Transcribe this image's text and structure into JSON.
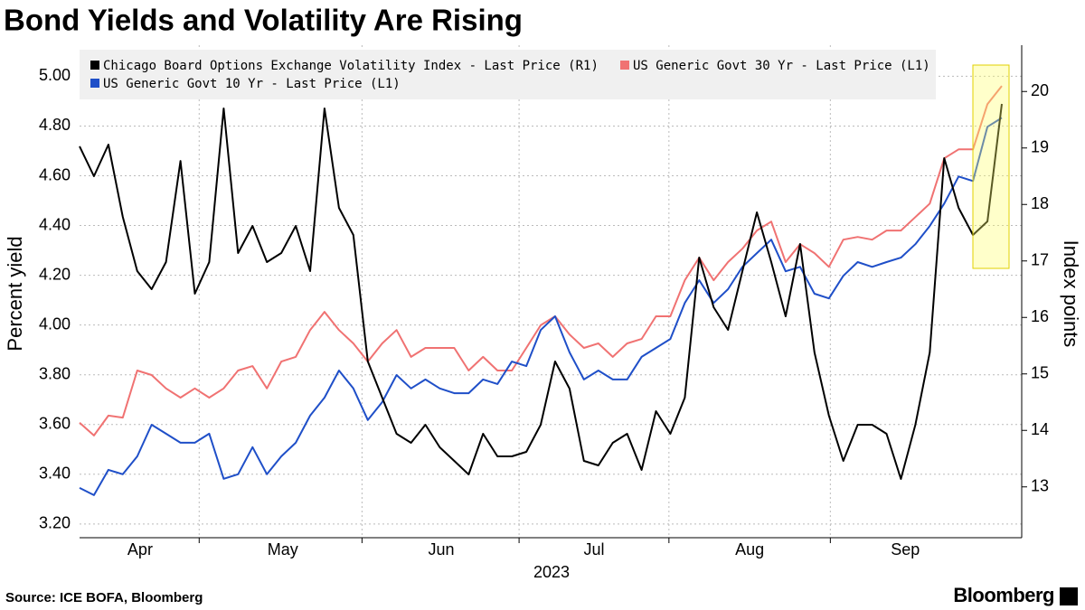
{
  "chart_data": {
    "type": "line",
    "title": "Bond Yields and Volatility Are Rising",
    "ylabel": "Percent yield",
    "y2label": "Index points",
    "xlabel": "2023",
    "source": "Source: ICE BOFA, Bloomberg",
    "brand": "Bloomberg",
    "categories": [
      null,
      null,
      null,
      null,
      null,
      null,
      null,
      null,
      null,
      null,
      null,
      null,
      null,
      null,
      null,
      null,
      null,
      null,
      null,
      null,
      null,
      null,
      null,
      null,
      null,
      null,
      null,
      null,
      null,
      null,
      null,
      null,
      null,
      null,
      null,
      null,
      null,
      null,
      null,
      null,
      null,
      null,
      null,
      null,
      null,
      null,
      null,
      null,
      null,
      null,
      null,
      null,
      null,
      null,
      null,
      null,
      null,
      null,
      null,
      null,
      null,
      null,
      null,
      null,
      null
    ],
    "xticks": [
      {
        "value": 4.2,
        "label": "Apr"
      },
      {
        "value": 14.1,
        "label": "May"
      },
      {
        "value": 25.1,
        "label": "Jun"
      },
      {
        "value": 35.7,
        "label": "Jul"
      },
      {
        "value": 46.5,
        "label": "Aug"
      },
      {
        "value": 57.3,
        "label": "Sep"
      }
    ],
    "xgrid": [
      8.3,
      19.6,
      30.5,
      40.9,
      52.1
    ],
    "ylim": [
      3.145,
      5.125
    ],
    "yticks": [
      {
        "value": 3.2,
        "label": "3.20"
      },
      {
        "value": 3.4,
        "label": "3.40"
      },
      {
        "value": 3.6,
        "label": "3.60"
      },
      {
        "value": 3.8,
        "label": "3.80"
      },
      {
        "value": 4.0,
        "label": "4.00"
      },
      {
        "value": 4.2,
        "label": "4.20"
      },
      {
        "value": 4.4,
        "label": "4.40"
      },
      {
        "value": 4.6,
        "label": "4.60"
      },
      {
        "value": 4.8,
        "label": "4.80"
      },
      {
        "value": 5.0,
        "label": "5.00"
      }
    ],
    "y2lim": [
      12.1,
      20.82
    ],
    "y2ticks": [
      13,
      14,
      15,
      16,
      17,
      18,
      19,
      20
    ],
    "grid": true,
    "legend": "top-left",
    "series": [
      {
        "name": "Chicago Board Options Exchange Volatility Index - Last Price (R1)",
        "color": "#000000",
        "axis": "y2",
        "values": [
          19.03,
          18.5,
          19.06,
          17.78,
          16.82,
          16.5,
          16.98,
          18.77,
          16.42,
          16.98,
          19.7,
          17.14,
          17.62,
          16.98,
          17.14,
          17.62,
          16.82,
          19.7,
          17.94,
          17.46,
          15.22,
          14.58,
          13.94,
          13.78,
          14.1,
          13.7,
          13.46,
          13.22,
          13.94,
          13.54,
          13.54,
          13.62,
          14.1,
          15.22,
          14.74,
          13.46,
          13.38,
          13.78,
          13.94,
          13.3,
          14.34,
          13.94,
          14.58,
          17.06,
          16.18,
          15.78,
          16.82,
          17.86,
          16.98,
          16.02,
          17.3,
          15.38,
          14.26,
          13.46,
          14.1,
          14.1,
          13.94,
          13.14,
          14.1,
          15.38,
          18.82,
          17.94,
          17.46,
          17.7,
          19.78
        ]
      },
      {
        "name": "US Generic Govt 30 Yr - Last Price (L1)",
        "color": "#f07272",
        "values": [
          3.607,
          3.556,
          3.636,
          3.628,
          3.817,
          3.799,
          3.745,
          3.708,
          3.745,
          3.708,
          3.745,
          3.817,
          3.835,
          3.745,
          3.853,
          3.872,
          3.98,
          4.053,
          3.98,
          3.926,
          3.853,
          3.926,
          3.98,
          3.872,
          3.908,
          3.908,
          3.908,
          3.817,
          3.872,
          3.817,
          3.817,
          3.908,
          3.999,
          4.035,
          3.962,
          3.908,
          3.926,
          3.872,
          3.926,
          3.944,
          4.035,
          4.035,
          4.18,
          4.271,
          4.18,
          4.253,
          4.307,
          4.38,
          4.416,
          4.253,
          4.325,
          4.289,
          4.234,
          4.343,
          4.354,
          4.343,
          4.38,
          4.38,
          4.434,
          4.488,
          4.67,
          4.706,
          4.706,
          4.888,
          4.961
        ]
      },
      {
        "name": "US Generic Govt 10 Yr - Last Price (L1)",
        "color": "#1f4fc8",
        "values": [
          3.345,
          3.316,
          3.418,
          3.4,
          3.472,
          3.599,
          3.563,
          3.527,
          3.527,
          3.563,
          3.382,
          3.4,
          3.509,
          3.4,
          3.472,
          3.527,
          3.636,
          3.708,
          3.817,
          3.745,
          3.618,
          3.69,
          3.799,
          3.745,
          3.781,
          3.745,
          3.726,
          3.726,
          3.781,
          3.763,
          3.853,
          3.835,
          3.98,
          4.035,
          3.89,
          3.781,
          3.817,
          3.781,
          3.781,
          3.872,
          3.908,
          3.944,
          4.089,
          4.18,
          4.089,
          4.144,
          4.234,
          4.289,
          4.343,
          4.216,
          4.234,
          4.126,
          4.107,
          4.198,
          4.253,
          4.234,
          4.253,
          4.271,
          4.325,
          4.398,
          4.488,
          4.597,
          4.579,
          4.797,
          4.833
        ]
      }
    ]
  }
}
